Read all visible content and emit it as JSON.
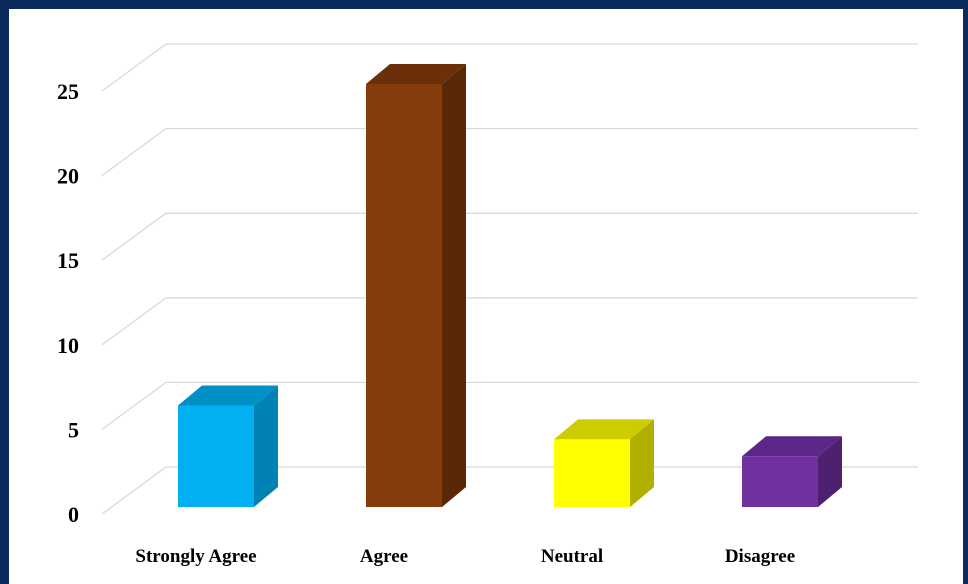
{
  "chart_data": {
    "type": "bar",
    "style": "3d-column",
    "title": "",
    "xlabel": "",
    "ylabel": "",
    "categories": [
      "Strongly Agree",
      "Agree",
      "Neutral",
      "Disagree"
    ],
    "values": [
      6,
      25,
      4,
      3
    ],
    "colors": {
      "front": [
        "#00b0f0",
        "#843c0c",
        "#ffff00",
        "#7030a0"
      ],
      "side": [
        "#0083b4",
        "#5a2807",
        "#b0b000",
        "#4e2070"
      ],
      "top": [
        "#0090c8",
        "#6b3009",
        "#cccc00",
        "#5c2788"
      ]
    },
    "ylim": [
      0,
      25
    ],
    "yticks": [
      "0",
      "5",
      "10",
      "15",
      "20",
      "25"
    ],
    "grid": true,
    "legend": "none",
    "frame_color": "#0a2a5c",
    "grid_color": "#d9d9d9"
  }
}
